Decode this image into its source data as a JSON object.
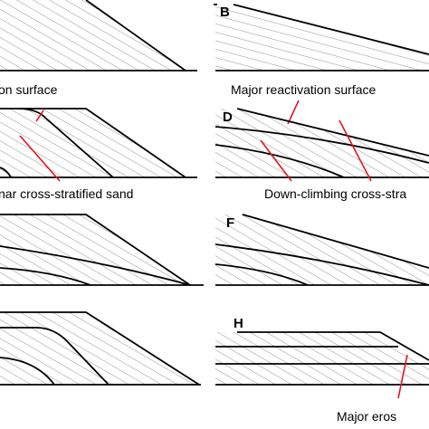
{
  "panels": [
    {
      "label": "B"
    },
    {
      "label": "D"
    },
    {
      "label": "F"
    },
    {
      "label": "H"
    }
  ],
  "annotations": [
    {
      "text": "on surface"
    },
    {
      "text": "Major reactivation surface"
    },
    {
      "text": "nar cross-stratified sand"
    },
    {
      "text": "Down-climbing cross-stra"
    },
    {
      "text": "Major eros"
    }
  ]
}
